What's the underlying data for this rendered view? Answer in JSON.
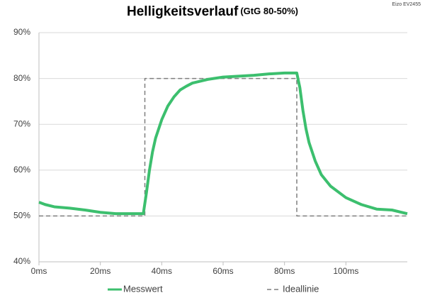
{
  "chart_data": {
    "type": "line",
    "title": "Helligkeitsverlauf",
    "subtitle": "(GtG 80-50%)",
    "annotation": "Eizo EV2455",
    "xlim": [
      0,
      120
    ],
    "xticks": [
      {
        "value": 0,
        "label": "0ms"
      },
      {
        "value": 20,
        "label": "20ms"
      },
      {
        "value": 40,
        "label": "40ms"
      },
      {
        "value": 60,
        "label": "60ms"
      },
      {
        "value": 80,
        "label": "80ms"
      },
      {
        "value": 100,
        "label": "100ms"
      }
    ],
    "ylim": [
      40,
      90
    ],
    "yticks": [
      {
        "value": 40,
        "label": "40%"
      },
      {
        "value": 50,
        "label": "50%"
      },
      {
        "value": 60,
        "label": "60%"
      },
      {
        "value": 70,
        "label": "70%"
      },
      {
        "value": 80,
        "label": "80%"
      },
      {
        "value": 90,
        "label": "90%"
      }
    ],
    "grid": true,
    "legend": "bottom",
    "series": [
      {
        "name": "Messwert",
        "color": "#3cbf6e",
        "style": "solid",
        "x": [
          0,
          2,
          5,
          10,
          15,
          20,
          25,
          30,
          34,
          35,
          36,
          37,
          38,
          40,
          42,
          44,
          46,
          48,
          50,
          55,
          60,
          65,
          70,
          75,
          80,
          84,
          85,
          86,
          87,
          88,
          90,
          92,
          95,
          100,
          105,
          110,
          115,
          120
        ],
        "values": [
          53,
          52.5,
          52,
          51.7,
          51.3,
          50.8,
          50.5,
          50.5,
          50.5,
          55,
          60,
          64,
          67,
          71,
          74,
          76,
          77.5,
          78.3,
          79,
          79.8,
          80.3,
          80.5,
          80.7,
          81,
          81.2,
          81.2,
          78,
          73,
          69,
          66,
          62,
          59,
          56.5,
          54,
          52.5,
          51.5,
          51.3,
          50.5
        ]
      },
      {
        "name": "Ideallinie",
        "color": "#7f7f7f",
        "style": "dashed",
        "x": [
          0,
          34.5,
          34.5,
          84,
          84,
          120
        ],
        "values": [
          50,
          50,
          80,
          80,
          50,
          50
        ]
      }
    ]
  }
}
